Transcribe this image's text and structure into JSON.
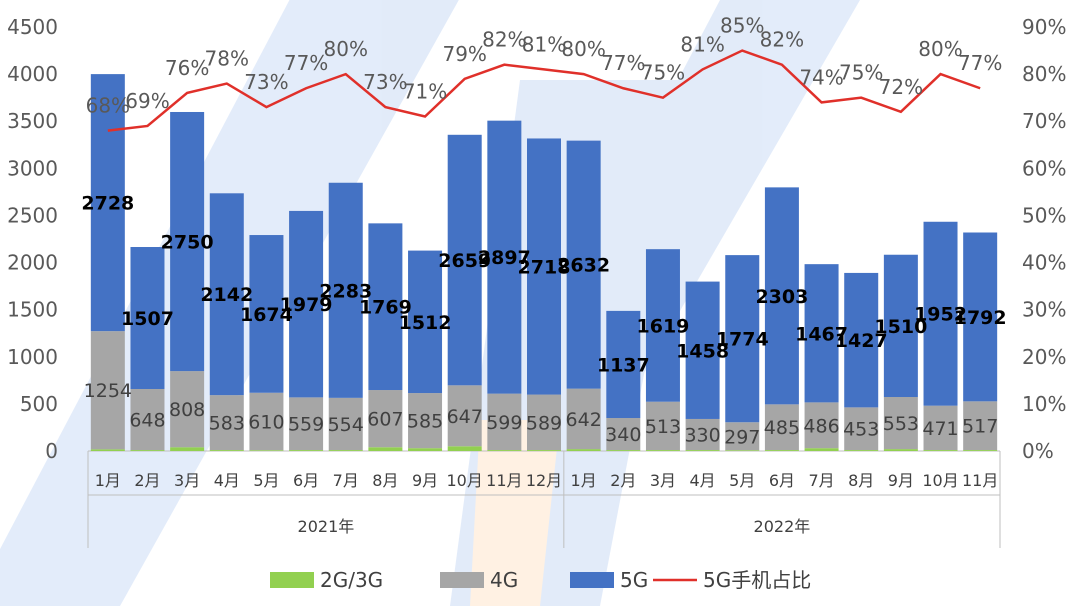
{
  "chart_data": {
    "type": "bar",
    "categories": [
      "1月",
      "2月",
      "3月",
      "4月",
      "5月",
      "6月",
      "7月",
      "8月",
      "9月",
      "10月",
      "11月",
      "12月",
      "1月",
      "2月",
      "3月",
      "4月",
      "5月",
      "6月",
      "7月",
      "8月",
      "9月",
      "10月",
      "11月"
    ],
    "groups": [
      {
        "label": "2021年",
        "count": 12
      },
      {
        "label": "2022年",
        "count": 11
      }
    ],
    "series": [
      {
        "name": "2G/3G",
        "kind": "stacked-bar",
        "color": "#92d050",
        "values": [
          18,
          10,
          40,
          10,
          8,
          10,
          10,
          40,
          30,
          50,
          10,
          10,
          20,
          10,
          10,
          10,
          8,
          10,
          30,
          10,
          20,
          10,
          10
        ]
      },
      {
        "name": "4G",
        "kind": "stacked-bar",
        "color": "#a6a6a6",
        "values": [
          1254,
          648,
          808,
          583,
          610,
          559,
          554,
          607,
          585,
          647,
          599,
          589,
          642,
          340,
          513,
          330,
          297,
          485,
          486,
          453,
          553,
          471,
          517
        ]
      },
      {
        "name": "5G",
        "kind": "stacked-bar",
        "color": "#4472c4",
        "values": [
          2728,
          1507,
          2750,
          2142,
          1674,
          1979,
          2283,
          1769,
          1512,
          2659,
          2897,
          2718,
          2632,
          1137,
          1619,
          1458,
          1774,
          2303,
          1467,
          1427,
          1510,
          1952,
          1792
        ]
      },
      {
        "name": "5G手机占比",
        "kind": "line",
        "axis": "right",
        "color": "#e0302a",
        "values": [
          68,
          69,
          76,
          78,
          73,
          77,
          80,
          73,
          71,
          79,
          82,
          81,
          80,
          77,
          75,
          81,
          85,
          82,
          74,
          75,
          72,
          80,
          77
        ],
        "labels": [
          "68%",
          "69%",
          "76%",
          "78%",
          "73%",
          "77%",
          "80%",
          "73%",
          "71%",
          "79%",
          "82%",
          "81%",
          "80%",
          "77%",
          "75%",
          "81%",
          "85%",
          "82%",
          "74%",
          "75%",
          "72%",
          "80%",
          "77%"
        ]
      }
    ],
    "y_left": {
      "range": [
        0,
        4500
      ],
      "ticks": [
        "0",
        "500",
        "1000",
        "1500",
        "2000",
        "2500",
        "3000",
        "3500",
        "4000",
        "4500"
      ]
    },
    "y_right": {
      "range": [
        0,
        90
      ],
      "ticks": [
        "0%",
        "10%",
        "20%",
        "30%",
        "40%",
        "50%",
        "60%",
        "70%",
        "80%",
        "90%"
      ]
    },
    "legend_position": "bottom",
    "grid": false
  }
}
